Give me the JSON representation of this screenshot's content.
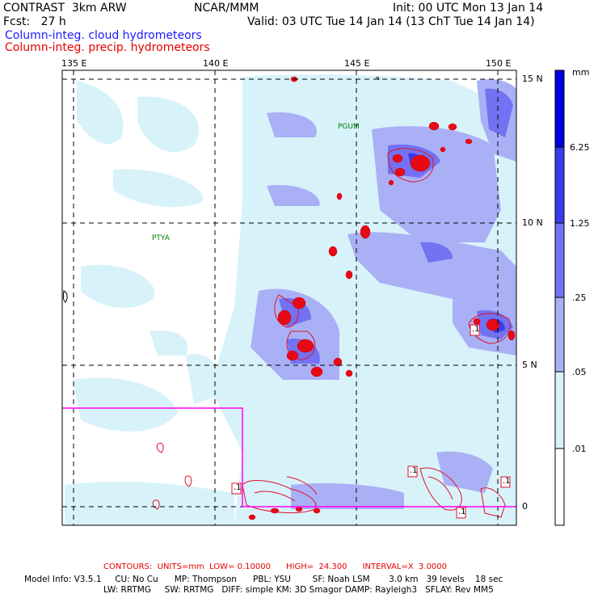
{
  "header": {
    "title": "CONTRAST  3km ARW",
    "center": "NCAR/MMM",
    "init": "Init: 00 UTC Mon 13 Jan 14",
    "fcst": "Fcst:   27 h",
    "valid": "Valid: 03 UTC Tue 14 Jan 14 (13 ChT Tue 14 Jan 14)",
    "field1": "Column-integ. cloud hydrometeors",
    "field2": "Column-integ. precip. hydrometeors"
  },
  "colors": {
    "field1": "#1a1aff",
    "field2": "#e60000",
    "contour": "#e0102a",
    "box": "#ff00ff",
    "label_green": "#008000"
  },
  "map": {
    "lon_labels": [
      "135 E",
      "140 E",
      "145 E",
      "150 E"
    ],
    "lat_labels": [
      "15 N",
      "10 N",
      "5 N",
      "0"
    ],
    "stations": [
      "PGUM",
      "PTYA"
    ],
    "contour_labels": [
      ".1",
      ".1",
      ".1",
      ".1",
      ".1"
    ]
  },
  "colorbar": {
    "units": "mm",
    "labels": [
      "6.25",
      "1.25",
      ".25",
      ".05",
      ".01"
    ],
    "colors": [
      "#0000dc",
      "#3a3aee",
      "#7272f2",
      "#aab0f6",
      "#d8f2fa",
      "#ffffff"
    ]
  },
  "footer": {
    "contours": "CONTOURS:  UNITS=mm  LOW= 0.10000      HIGH=  24.300      INTERVAL=X  3.0000",
    "model_line1": "Model Info: V3.5.1     CU: No Cu      MP: Thompson      PBL: YSU        SF: Noah LSM       3.0 km   39 levels    18 sec",
    "model_line2": "LW: RRTMG     SW: RRTMG   DIFF: simple KM: 3D Smagor DAMP: Rayleigh3   SFLAY: Rev MM5"
  }
}
